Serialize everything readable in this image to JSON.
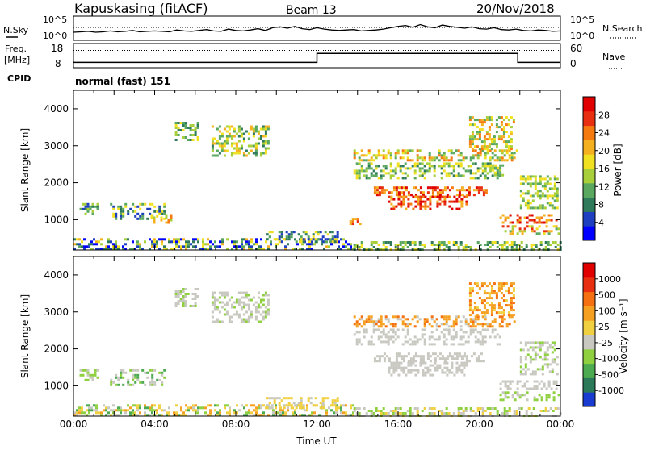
{
  "header": {
    "station": "Kapuskasing (fitACF)",
    "beam": "Beam 13",
    "date": "20/Nov/2018"
  },
  "noise_panel": {
    "left_label": "N.Sky",
    "right_label": "N.Search",
    "tick_top": "10^5",
    "tick_bottom": "10^0",
    "sky_profile": [
      1.6,
      1.7,
      1.8,
      1.6,
      1.7,
      1.9,
      1.7,
      1.8,
      2.0,
      1.7,
      1.8,
      1.9,
      1.8,
      1.7,
      2.1,
      1.9,
      1.8,
      2.0,
      2.2,
      1.9,
      1.8,
      2.3,
      2.0,
      1.9,
      2.1,
      2.4,
      2.0,
      2.6,
      2.8,
      2.5,
      2.9,
      2.4,
      2.2,
      2.6,
      2.3,
      2.1,
      2.0,
      2.1,
      2.2,
      1.9,
      2.0,
      2.1,
      2.3,
      2.6,
      2.9,
      3.1,
      2.7,
      3.3,
      2.8,
      2.6,
      3.2,
      2.9,
      2.7,
      2.5,
      2.8,
      2.4,
      2.3,
      2.6,
      2.2,
      2.1,
      2.3,
      2.0,
      1.9,
      2.1,
      2.0,
      1.8,
      1.9
    ]
  },
  "freq_panel": {
    "left_label_1": "Freq.",
    "left_label_2": "[MHz]",
    "right_label": "Nave",
    "tick_left_top": "18",
    "tick_left_bottom": "8",
    "tick_right_top": "60",
    "tick_right_bottom": "0",
    "freq_steps": [
      [
        0,
        10
      ],
      [
        12,
        14
      ],
      [
        21.9,
        10
      ],
      [
        24,
        10
      ]
    ],
    "nave_dotted": 44
  },
  "cpid": {
    "label": "CPID",
    "value": "normal (fast) 151"
  },
  "chart_data": [
    {
      "type": "heatmap",
      "name": "power",
      "xlabel": "Time UT",
      "ylabel": "Slant Range [km]",
      "xlim": [
        0,
        24
      ],
      "ylim": [
        180,
        4500
      ],
      "yticks": [
        "1000",
        "2000",
        "3000",
        "4000"
      ],
      "colorbar": {
        "label": "Power [dB]",
        "ticks": [
          "4",
          "8",
          "12",
          "16",
          "20",
          "24",
          "28"
        ],
        "colors": [
          "#0000ff",
          "#1e3fbf",
          "#2e7a5a",
          "#5aa860",
          "#a6cf3a",
          "#f0e020",
          "#f5b020",
          "#f57b10",
          "#e83010",
          "#e00000"
        ]
      },
      "regions": [
        {
          "t0": 5.0,
          "t1": 6.1,
          "r0": 3150,
          "r1": 3650,
          "levels": [
            2,
            3,
            4,
            5
          ]
        },
        {
          "t0": 6.8,
          "t1": 9.6,
          "r0": 2700,
          "r1": 3550,
          "levels": [
            2,
            3,
            4,
            5,
            6
          ]
        },
        {
          "t0": 0.3,
          "t1": 1.2,
          "r0": 1150,
          "r1": 1450,
          "levels": [
            1,
            2,
            3,
            4
          ]
        },
        {
          "t0": 1.8,
          "t1": 4.5,
          "r0": 1050,
          "r1": 1450,
          "levels": [
            1,
            2,
            3,
            5
          ]
        },
        {
          "t0": 3.8,
          "t1": 4.8,
          "r0": 900,
          "r1": 1150,
          "levels": [
            4,
            5,
            6,
            7
          ]
        },
        {
          "t0": 13.6,
          "t1": 14.1,
          "r0": 900,
          "r1": 1050,
          "levels": [
            6,
            7,
            8
          ]
        },
        {
          "t0": 13.8,
          "t1": 21.9,
          "r0": 2600,
          "r1": 2900,
          "levels": [
            3,
            4,
            5,
            6,
            7
          ]
        },
        {
          "t0": 13.8,
          "t1": 21.0,
          "r0": 2150,
          "r1": 2550,
          "levels": [
            2,
            3,
            4,
            5
          ]
        },
        {
          "t0": 14.8,
          "t1": 20.3,
          "r0": 1650,
          "r1": 1900,
          "levels": [
            6,
            7,
            8,
            9
          ]
        },
        {
          "t0": 15.5,
          "t1": 19.4,
          "r0": 1300,
          "r1": 1650,
          "levels": [
            6,
            7,
            8,
            9
          ]
        },
        {
          "t0": 19.5,
          "t1": 21.7,
          "r0": 2900,
          "r1": 3800,
          "levels": [
            3,
            4,
            5,
            6,
            7
          ]
        },
        {
          "t0": 20.5,
          "t1": 21.2,
          "r0": 2200,
          "r1": 2500,
          "levels": [
            3,
            4,
            5
          ]
        },
        {
          "t0": 21.0,
          "t1": 23.8,
          "r0": 950,
          "r1": 1150,
          "levels": [
            6,
            7,
            8,
            9
          ]
        },
        {
          "t0": 21.0,
          "t1": 23.9,
          "r0": 650,
          "r1": 850,
          "levels": [
            3,
            4,
            5,
            6,
            8
          ]
        },
        {
          "t0": 22.0,
          "t1": 23.8,
          "r0": 1300,
          "r1": 2200,
          "levels": [
            3,
            4,
            5
          ]
        },
        {
          "t0": 0.0,
          "t1": 13.8,
          "r0": 180,
          "r1": 500,
          "levels": [
            0,
            1,
            2,
            3,
            4,
            5,
            6
          ]
        },
        {
          "t0": 13.8,
          "t1": 24.0,
          "r0": 180,
          "r1": 420,
          "levels": [
            2,
            3,
            4,
            5
          ]
        },
        {
          "t0": 9.5,
          "t1": 13.0,
          "r0": 400,
          "r1": 700,
          "levels": [
            1,
            2,
            3,
            5
          ]
        }
      ]
    },
    {
      "type": "heatmap",
      "name": "velocity",
      "xlabel": "Time UT",
      "ylabel": "Slant Range [km]",
      "xlim": [
        0,
        24
      ],
      "ylim": [
        180,
        4500
      ],
      "xticks": [
        "00:00",
        "04:00",
        "08:00",
        "12:00",
        "16:00",
        "20:00",
        "00:00"
      ],
      "yticks": [
        "1000",
        "2000",
        "3000",
        "4000"
      ],
      "colorbar": {
        "label": "Velocity [m s⁻¹]",
        "ticks": [
          "1000",
          "500",
          "100",
          "25",
          "-25",
          "-100",
          "-500",
          "-1000"
        ],
        "colors": [
          "#1a3bd0",
          "#2a7a5a",
          "#4caa50",
          "#8fd040",
          "#c8c8c0",
          "#f0d040",
          "#f5a020",
          "#f57010",
          "#e83010",
          "#e00000"
        ]
      },
      "regions": [
        {
          "t0": 5.0,
          "t1": 6.1,
          "r0": 3150,
          "r1": 3650,
          "levels": [
            4,
            4,
            3
          ]
        },
        {
          "t0": 6.8,
          "t1": 9.6,
          "r0": 2700,
          "r1": 3550,
          "levels": [
            4,
            4,
            4,
            3
          ]
        },
        {
          "t0": 0.3,
          "t1": 1.2,
          "r0": 1150,
          "r1": 1450,
          "levels": [
            4,
            3
          ]
        },
        {
          "t0": 1.8,
          "t1": 4.5,
          "r0": 1050,
          "r1": 1450,
          "levels": [
            4,
            4,
            3,
            2
          ]
        },
        {
          "t0": 13.8,
          "t1": 21.9,
          "r0": 2600,
          "r1": 2900,
          "levels": [
            6,
            7,
            6,
            4
          ]
        },
        {
          "t0": 13.8,
          "t1": 21.0,
          "r0": 2150,
          "r1": 2550,
          "levels": [
            4,
            4,
            4
          ]
        },
        {
          "t0": 14.8,
          "t1": 20.3,
          "r0": 1650,
          "r1": 1900,
          "levels": [
            4,
            4,
            4
          ]
        },
        {
          "t0": 15.5,
          "t1": 19.4,
          "r0": 1300,
          "r1": 1650,
          "levels": [
            4,
            4,
            4
          ]
        },
        {
          "t0": 19.5,
          "t1": 21.7,
          "r0": 2900,
          "r1": 3800,
          "levels": [
            6,
            7,
            6,
            5
          ]
        },
        {
          "t0": 21.0,
          "t1": 23.8,
          "r0": 950,
          "r1": 1150,
          "levels": [
            4,
            4,
            4
          ]
        },
        {
          "t0": 21.0,
          "t1": 23.9,
          "r0": 650,
          "r1": 850,
          "levels": [
            4,
            3,
            3
          ]
        },
        {
          "t0": 22.0,
          "t1": 23.8,
          "r0": 1300,
          "r1": 2200,
          "levels": [
            4,
            4,
            3
          ]
        },
        {
          "t0": 0.0,
          "t1": 13.8,
          "r0": 180,
          "r1": 500,
          "levels": [
            3,
            4,
            5,
            5,
            6,
            2
          ]
        },
        {
          "t0": 13.8,
          "t1": 24.0,
          "r0": 180,
          "r1": 420,
          "levels": [
            3,
            4,
            5
          ]
        },
        {
          "t0": 9.5,
          "t1": 13.0,
          "r0": 400,
          "r1": 700,
          "levels": [
            4,
            5,
            5
          ]
        }
      ]
    }
  ]
}
